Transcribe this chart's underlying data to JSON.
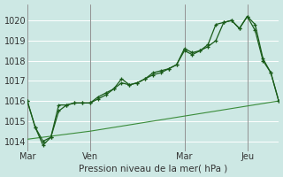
{
  "xlabel": "Pression niveau de la mer( hPa )",
  "bg_color": "#cde8e4",
  "grid_color": "#ffffff",
  "line_color_dark": "#1a5c1a",
  "line_color_thin": "#3a8c3a",
  "ylim": [
    1013.5,
    1020.8
  ],
  "yticks": [
    1014,
    1015,
    1016,
    1017,
    1018,
    1019,
    1020
  ],
  "day_labels": [
    "Mar",
    "Ven",
    "Mar",
    "Jeu"
  ],
  "day_positions": [
    0,
    8,
    20,
    28
  ],
  "vline_x": [
    0,
    8,
    20,
    28
  ],
  "xlim": [
    0,
    32
  ],
  "xtick_minor": [
    0,
    2,
    4,
    6,
    8,
    10,
    12,
    14,
    16,
    18,
    20,
    22,
    24,
    26,
    28,
    30,
    32
  ],
  "series1_x": [
    0,
    1,
    2,
    3,
    4,
    5,
    6,
    7,
    8,
    9,
    10,
    11,
    12,
    13,
    14,
    15,
    16,
    17,
    18,
    19,
    20,
    21,
    22,
    23,
    24,
    25,
    26,
    27,
    28,
    29,
    30,
    31,
    32
  ],
  "series1_y": [
    1016.0,
    1014.7,
    1013.8,
    1014.2,
    1015.8,
    1015.8,
    1015.9,
    1015.9,
    1015.9,
    1016.2,
    1016.4,
    1016.6,
    1017.1,
    1016.8,
    1016.9,
    1017.1,
    1017.4,
    1017.5,
    1017.6,
    1017.8,
    1018.6,
    1018.4,
    1018.5,
    1018.7,
    1019.0,
    1019.9,
    1020.0,
    1019.6,
    1020.2,
    1019.8,
    1018.1,
    1017.4,
    1016.0
  ],
  "series2_x": [
    0,
    1,
    2,
    3,
    4,
    5,
    6,
    7,
    8,
    9,
    10,
    11,
    12,
    13,
    14,
    15,
    16,
    17,
    18,
    19,
    20,
    21,
    22,
    23,
    24,
    25,
    26,
    27,
    28,
    29,
    30,
    31,
    32
  ],
  "series2_y": [
    1016.0,
    1014.7,
    1014.0,
    1014.2,
    1015.5,
    1015.8,
    1015.9,
    1015.9,
    1015.9,
    1016.1,
    1016.3,
    1016.6,
    1016.9,
    1016.8,
    1016.9,
    1017.1,
    1017.3,
    1017.4,
    1017.6,
    1017.8,
    1018.5,
    1018.3,
    1018.5,
    1018.8,
    1019.8,
    1019.9,
    1020.0,
    1019.6,
    1020.2,
    1019.5,
    1018.0,
    1017.4,
    1016.0
  ],
  "series3_x": [
    0,
    8,
    16,
    24,
    32
  ],
  "series3_y": [
    1014.1,
    1014.5,
    1015.0,
    1015.5,
    1016.0
  ]
}
